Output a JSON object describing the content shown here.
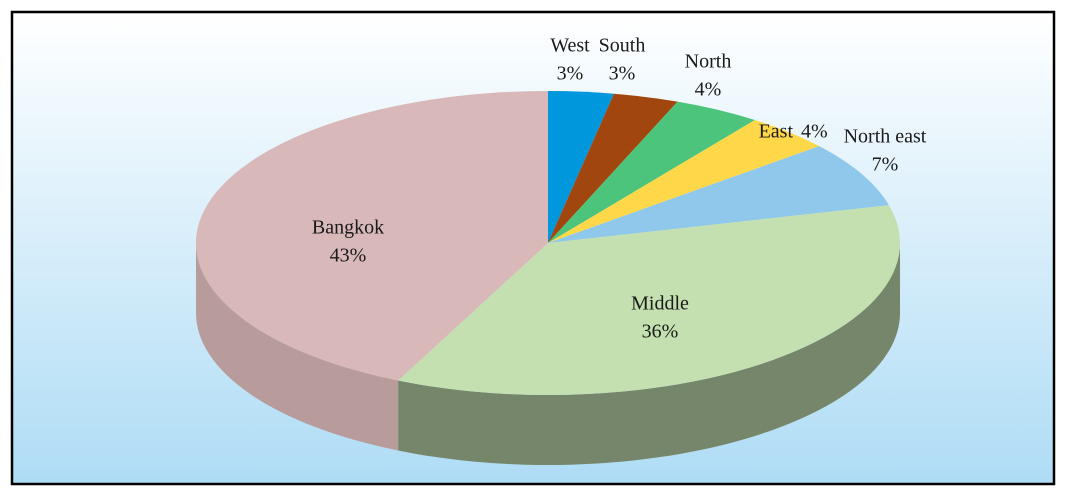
{
  "chart_data": {
    "type": "pie3d",
    "categories": [
      "West",
      "South",
      "North",
      "East",
      "North east",
      "Middle",
      "Bangkok"
    ],
    "values": [
      3,
      3,
      4,
      4,
      7,
      36,
      43
    ],
    "value_labels": [
      "3%",
      "3%",
      "4%",
      "4%",
      "7%",
      "36%",
      "43%"
    ],
    "colors": [
      "#0097dc",
      "#a0460e",
      "#4cc47c",
      "#ffd84a",
      "#8fc8ea",
      "#c5e0b0",
      "#d8b8b8"
    ]
  }
}
